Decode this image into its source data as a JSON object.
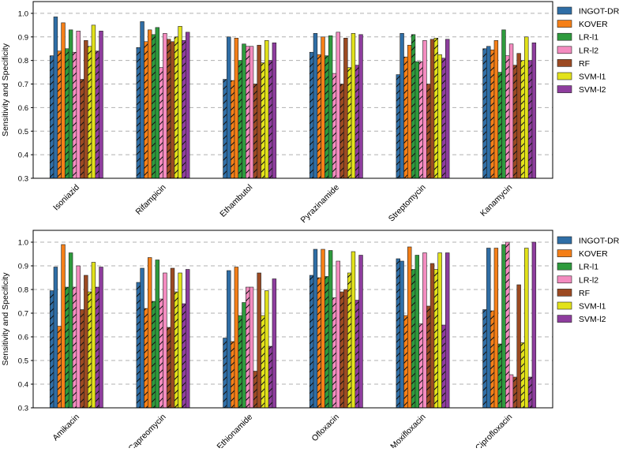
{
  "colors": {
    "INGOT-DR": "#2f6ea6",
    "KOVER": "#f57f17",
    "LR-l1": "#2e9b3d",
    "LR-l2": "#f48cc0",
    "RF": "#9c4a22",
    "SVM-l1": "#e2e21a",
    "SVM-l2": "#8e3d9e"
  },
  "chart_data": [
    {
      "type": "bar",
      "ylabel": "Sensitivity and Specificity",
      "ylim": [
        0.3,
        1.05
      ],
      "yticks": [
        "0.3",
        "0.4",
        "0.5",
        "0.6",
        "0.7",
        "0.8",
        "0.9",
        "1.0"
      ],
      "grid": true,
      "legend_placement": "right",
      "legend": [
        "INGOT-DR",
        "KOVER",
        "LR-l1",
        "LR-l2",
        "RF",
        "SVM-l1",
        "SVM-l2"
      ],
      "categories": [
        "Isoniazid",
        "Rifampicin",
        "Ethambutol",
        "Pyrazinamide",
        "Streptomycin",
        "Kanamycin"
      ],
      "series": [
        {
          "name": "INGOT-DR",
          "sensitivity": [
            0.82,
            0.855,
            0.72,
            0.835,
            0.74,
            0.85
          ],
          "specificity": [
            0.985,
            0.965,
            0.9,
            0.915,
            0.915,
            0.86
          ]
        },
        {
          "name": "KOVER",
          "sensitivity": [
            0.84,
            0.88,
            0.715,
            0.825,
            0.815,
            0.845
          ],
          "specificity": [
            0.96,
            0.93,
            0.895,
            0.9,
            0.865,
            0.885
          ]
        },
        {
          "name": "LR-l1",
          "sensitivity": [
            0.85,
            0.91,
            0.8,
            0.82,
            0.91,
            0.75
          ],
          "specificity": [
            0.93,
            0.94,
            0.87,
            0.905,
            0.795,
            0.93
          ]
        },
        {
          "name": "LR-l2",
          "sensitivity": [
            0.835,
            0.77,
            0.86,
            0.745,
            0.795,
            0.82
          ],
          "specificity": [
            0.925,
            0.915,
            0.86,
            0.92,
            0.885,
            0.87
          ]
        },
        {
          "name": "RF",
          "sensitivity": [
            0.72,
            0.89,
            0.7,
            0.7,
            0.7,
            0.78
          ],
          "specificity": [
            0.885,
            0.88,
            0.865,
            0.895,
            0.89,
            0.83
          ]
        },
        {
          "name": "SVM-l1",
          "sensitivity": [
            0.86,
            0.9,
            0.79,
            0.77,
            0.895,
            0.8
          ],
          "specificity": [
            0.95,
            0.945,
            0.885,
            0.915,
            0.825,
            0.9
          ]
        },
        {
          "name": "SVM-l2",
          "sensitivity": [
            0.84,
            0.885,
            0.8,
            0.78,
            0.81,
            0.8
          ],
          "specificity": [
            0.925,
            0.92,
            0.875,
            0.91,
            0.89,
            0.875
          ]
        }
      ]
    },
    {
      "type": "bar",
      "ylabel": "Sensitivity and Specificity",
      "ylim": [
        0.3,
        1.05
      ],
      "yticks": [
        "0.3",
        "0.4",
        "0.5",
        "0.6",
        "0.7",
        "0.8",
        "0.9",
        "1.0"
      ],
      "grid": true,
      "legend_placement": "right",
      "legend": [
        "INGOT-DR",
        "KOVER",
        "LR-l1",
        "LR-l2",
        "RF",
        "SVM-l1",
        "SVM-l2"
      ],
      "categories": [
        "Amikacin",
        "Capreomycin",
        "Ethionamide",
        "Ofloxacin",
        "Moxifloxacin",
        "Ciprofloxacin"
      ],
      "series": [
        {
          "name": "INGOT-DR",
          "sensitivity": [
            0.795,
            0.83,
            0.595,
            0.86,
            0.93,
            0.715
          ],
          "specificity": [
            0.895,
            0.89,
            0.88,
            0.97,
            0.92,
            0.975
          ]
        },
        {
          "name": "KOVER",
          "sensitivity": [
            0.645,
            0.72,
            0.58,
            0.85,
            0.69,
            0.71
          ],
          "specificity": [
            0.99,
            0.935,
            0.895,
            0.97,
            0.98,
            0.975
          ]
        },
        {
          "name": "LR-l1",
          "sensitivity": [
            0.81,
            0.75,
            0.69,
            0.855,
            0.885,
            0.57
          ],
          "specificity": [
            0.955,
            0.925,
            0.745,
            0.965,
            0.945,
            0.99
          ]
        },
        {
          "name": "LR-l2",
          "sensitivity": [
            0.81,
            0.76,
            0.81,
            0.765,
            0.655,
            1.0
          ],
          "specificity": [
            0.9,
            0.87,
            0.81,
            0.92,
            0.955,
            0.44
          ]
        },
        {
          "name": "RF",
          "sensitivity": [
            0.715,
            0.64,
            0.455,
            0.79,
            0.73,
            0.43
          ],
          "specificity": [
            0.86,
            0.89,
            0.87,
            0.8,
            0.91,
            0.82
          ]
        },
        {
          "name": "SVM-l1",
          "sensitivity": [
            0.79,
            0.79,
            0.69,
            0.87,
            0.885,
            0.575
          ],
          "specificity": [
            0.915,
            0.87,
            0.795,
            0.96,
            0.955,
            0.975
          ]
        },
        {
          "name": "SVM-l2",
          "sensitivity": [
            0.81,
            0.74,
            0.56,
            0.755,
            0.65,
            0.43
          ],
          "specificity": [
            0.895,
            0.885,
            0.845,
            0.945,
            0.955,
            1.0
          ]
        }
      ]
    }
  ]
}
